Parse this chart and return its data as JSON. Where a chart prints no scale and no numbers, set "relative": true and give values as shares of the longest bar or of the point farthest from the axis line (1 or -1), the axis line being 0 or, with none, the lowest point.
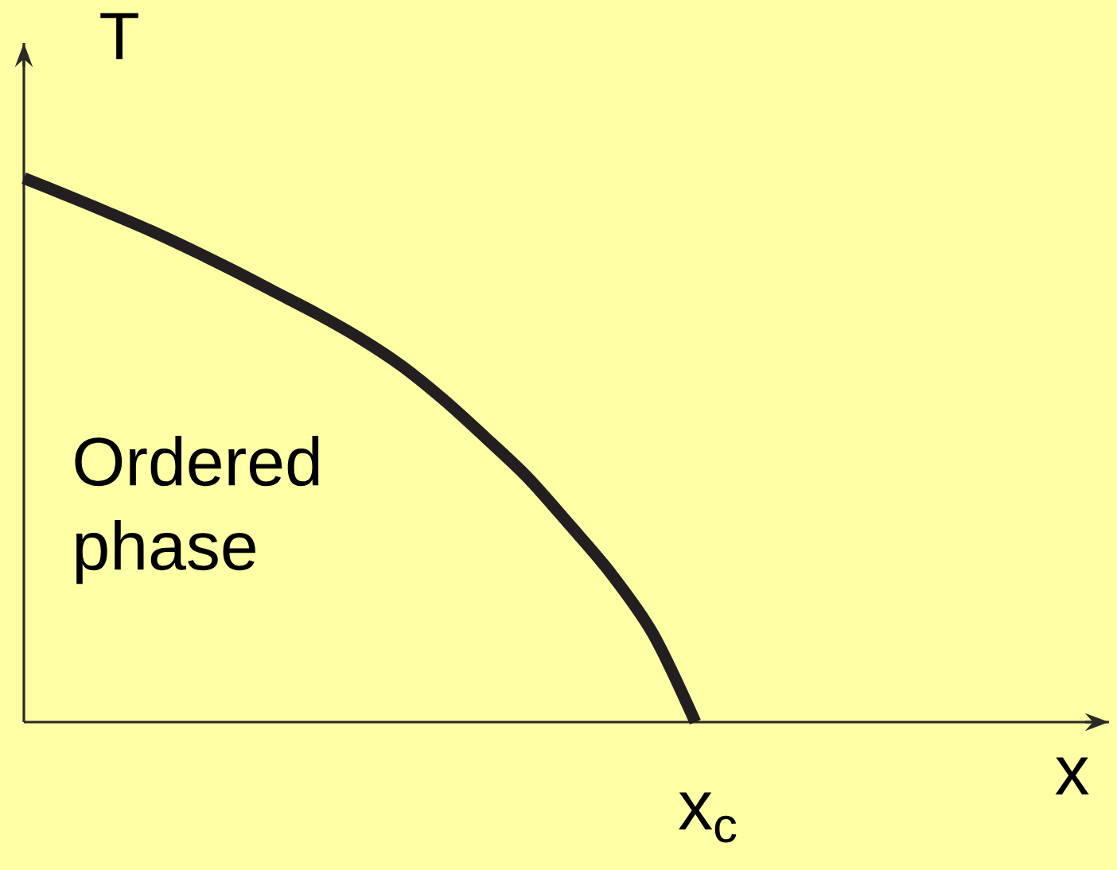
{
  "chart_data": {
    "type": "line",
    "relative": true,
    "xlabel": "x",
    "ylabel": "T",
    "categories": [
      null,
      null,
      null,
      null,
      null,
      null,
      null,
      null,
      null,
      null,
      null,
      null,
      null,
      null,
      null,
      null,
      null
    ],
    "series": [
      {
        "color": "#231f20",
        "values": [
          1,
          0.969,
          0.937,
          0.904,
          0.868,
          0.83,
          0.79,
          0.75,
          0.706,
          0.655,
          0.593,
          0.523,
          0.45,
          0.363,
          0.272,
          0.161,
          0
        ]
      }
    ],
    "annotations": [
      "Ordered phase",
      "x$_{c}$"
    ],
    "marker": "none",
    "line_style": "solid"
  }
}
